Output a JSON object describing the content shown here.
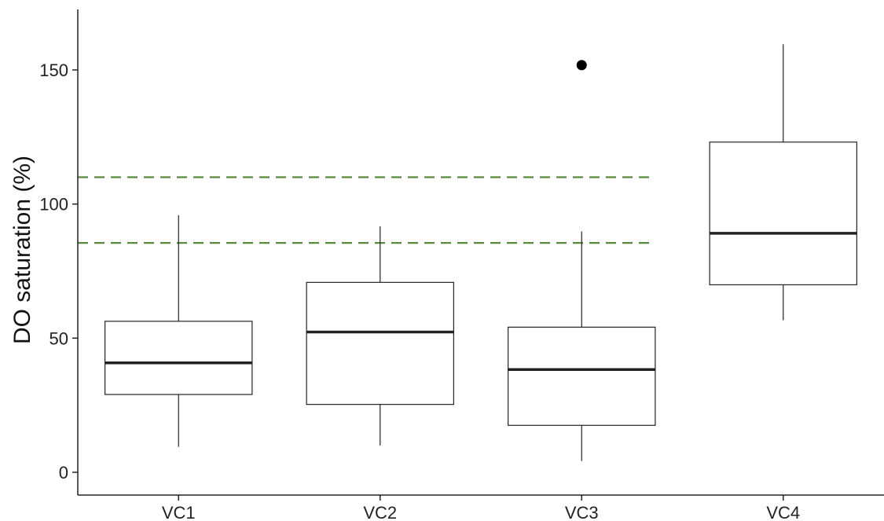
{
  "chart_data": {
    "type": "box",
    "title": "",
    "xlabel": "",
    "ylabel": "DO saturation (%)",
    "categories": [
      "VC1",
      "VC2",
      "VC3",
      "VC4"
    ],
    "boxes": [
      {
        "category": "VC1",
        "whisker_low": 9.5,
        "q1": 29,
        "median": 40.8,
        "q3": 56.3,
        "whisker_high": 95.8,
        "outliers": []
      },
      {
        "category": "VC2",
        "whisker_low": 10,
        "q1": 25.3,
        "median": 52.3,
        "q3": 70.8,
        "whisker_high": 91.7,
        "outliers": []
      },
      {
        "category": "VC3",
        "whisker_low": 4.2,
        "q1": 17.5,
        "median": 38.3,
        "q3": 54.1,
        "whisker_high": 89.8,
        "outliers": [
          151.8
        ]
      },
      {
        "category": "VC4",
        "whisker_low": 56.7,
        "q1": 69.9,
        "median": 89.1,
        "q3": 123.1,
        "whisker_high": 159.6,
        "outliers": []
      }
    ],
    "reference_lines": [
      {
        "y": 110,
        "style": "dashed",
        "color": "#5a8a3c",
        "extends_to": "VC3"
      },
      {
        "y": 85.5,
        "style": "dashed",
        "color": "#5a8a3c",
        "extends_to": "VC3"
      }
    ],
    "yticks": [
      0,
      50,
      100,
      150
    ],
    "ylim": [
      -8,
      173
    ],
    "grid": false,
    "legend": "none",
    "colors": {
      "box_fill": "#ffffff",
      "box_stroke": "#222222",
      "median": "#222222",
      "outlier": "#000000",
      "axis": "#222222"
    }
  }
}
